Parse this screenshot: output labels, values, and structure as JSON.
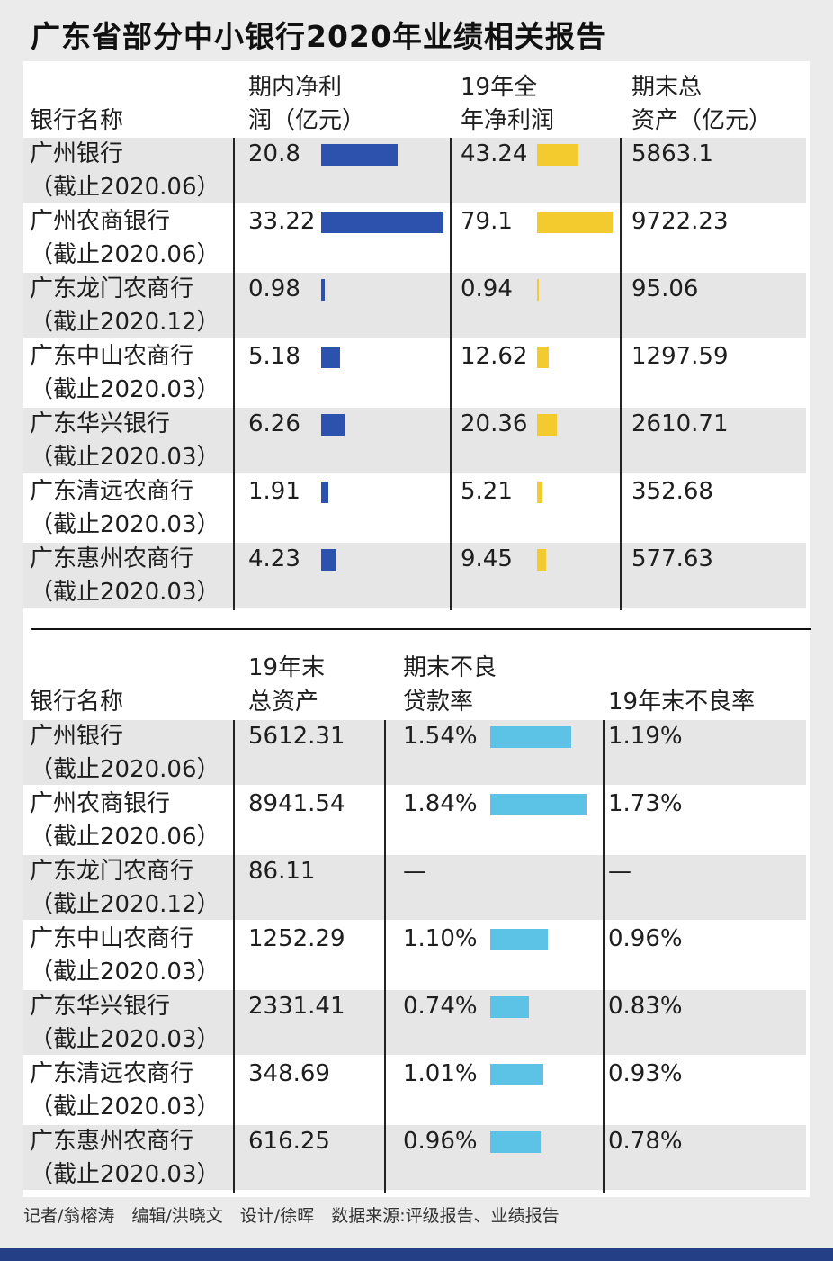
{
  "title": "广东省部分中小银行2020年业绩相关报告",
  "table1": {
    "headers": {
      "bank": "银行名称",
      "net_profit_l1": "期内净利",
      "net_profit_l2": "润（亿元）",
      "profit19_l1": "19年全",
      "profit19_l2": "年净利润",
      "assets_l1": "期末总",
      "assets_l2": "资产（亿元）"
    },
    "rows": [
      {
        "name": "广州银行",
        "period": "（截止2020.06）",
        "net_profit": "20.8",
        "profit19": "43.24",
        "assets": "5863.1"
      },
      {
        "name": "广州农商银行",
        "period": "（截止2020.06）",
        "net_profit": "33.22",
        "profit19": "79.1",
        "assets": "9722.23"
      },
      {
        "name": "广东龙门农商行",
        "period": "（截止2020.12）",
        "net_profit": "0.98",
        "profit19": "0.94",
        "assets": "95.06"
      },
      {
        "name": "广东中山农商行",
        "period": "（截止2020.03）",
        "net_profit": "5.18",
        "profit19": "12.62",
        "assets": "1297.59"
      },
      {
        "name": "广东华兴银行",
        "period": "（截止2020.03）",
        "net_profit": "6.26",
        "profit19": "20.36",
        "assets": "2610.71"
      },
      {
        "name": "广东清远农商行",
        "period": "（截止2020.03）",
        "net_profit": "1.91",
        "profit19": "5.21",
        "assets": "352.68"
      },
      {
        "name": "广东惠州农商行",
        "period": "（截止2020.03）",
        "net_profit": "4.23",
        "profit19": "9.45",
        "assets": "577.63"
      }
    ]
  },
  "table2": {
    "headers": {
      "bank": "银行名称",
      "assets19_l1": "19年末",
      "assets19_l2": "总资产",
      "npl_l1": "期末不良",
      "npl_l2": "贷款率",
      "npl19": "19年末不良率"
    },
    "rows": [
      {
        "name": "广州银行",
        "period": "（截止2020.06）",
        "assets19": "5612.31",
        "npl": "1.54%",
        "npl19": "1.19%"
      },
      {
        "name": "广州农商银行",
        "period": "（截止2020.06）",
        "assets19": "8941.54",
        "npl": "1.84%",
        "npl19": "1.73%"
      },
      {
        "name": "广东龙门农商行",
        "period": "（截止2020.12）",
        "assets19": "86.11",
        "npl": "—",
        "npl19": "—"
      },
      {
        "name": "广东中山农商行",
        "period": "（截止2020.03）",
        "assets19": "1252.29",
        "npl": "1.10%",
        "npl19": "0.96%"
      },
      {
        "name": "广东华兴银行",
        "period": "（截止2020.03）",
        "assets19": "2331.41",
        "npl": "0.74%",
        "npl19": "0.83%"
      },
      {
        "name": "广东清远农商行",
        "period": "（截止2020.03）",
        "assets19": "348.69",
        "npl": "1.01%",
        "npl19": "0.93%"
      },
      {
        "name": "广东惠州农商行",
        "period": "（截止2020.03）",
        "assets19": "616.25",
        "npl": "0.96%",
        "npl19": "0.78%"
      }
    ]
  },
  "footer": "记者/翁榕涛　编辑/洪晓文　设计/徐晖　数据来源:评级报告、业绩报告",
  "colors": {
    "net_profit_bar": "#2d52ad",
    "profit19_bar": "#f4cb2e",
    "npl_bar": "#5cc3e7",
    "band": "#253f86"
  },
  "chart_data": [
    {
      "type": "bar",
      "categories": [
        "广州银行",
        "广州农商银行",
        "广东龙门农商行",
        "广东中山农商行",
        "广东华兴银行",
        "广东清远农商行",
        "广东惠州农商行"
      ],
      "series": [
        {
          "name": "期内净利润（亿元）",
          "values": [
            20.8,
            33.22,
            0.98,
            5.18,
            6.26,
            1.91,
            4.23
          ]
        },
        {
          "name": "19年全年净利润",
          "values": [
            43.24,
            79.1,
            0.94,
            12.62,
            20.36,
            5.21,
            9.45
          ]
        }
      ],
      "extra_columns": {
        "期末总资产（亿元）": [
          5863.1,
          9722.23,
          95.06,
          1297.59,
          2610.71,
          352.68,
          577.63
        ]
      },
      "title": "",
      "xlabel": "",
      "ylabel": ""
    },
    {
      "type": "bar",
      "categories": [
        "广州银行",
        "广州农商银行",
        "广东龙门农商行",
        "广东中山农商行",
        "广东华兴银行",
        "广东清远农商行",
        "广东惠州农商行"
      ],
      "series": [
        {
          "name": "期末不良贷款率",
          "values": [
            1.54,
            1.84,
            null,
            1.1,
            0.74,
            1.01,
            0.96
          ]
        }
      ],
      "extra_columns": {
        "19年末总资产": [
          5612.31,
          8941.54,
          86.11,
          1252.29,
          2331.41,
          348.69,
          616.25
        ],
        "19年末不良率": [
          1.19,
          1.73,
          null,
          0.96,
          0.83,
          0.93,
          0.78
        ]
      },
      "title": "",
      "xlabel": "",
      "ylabel": ""
    }
  ]
}
